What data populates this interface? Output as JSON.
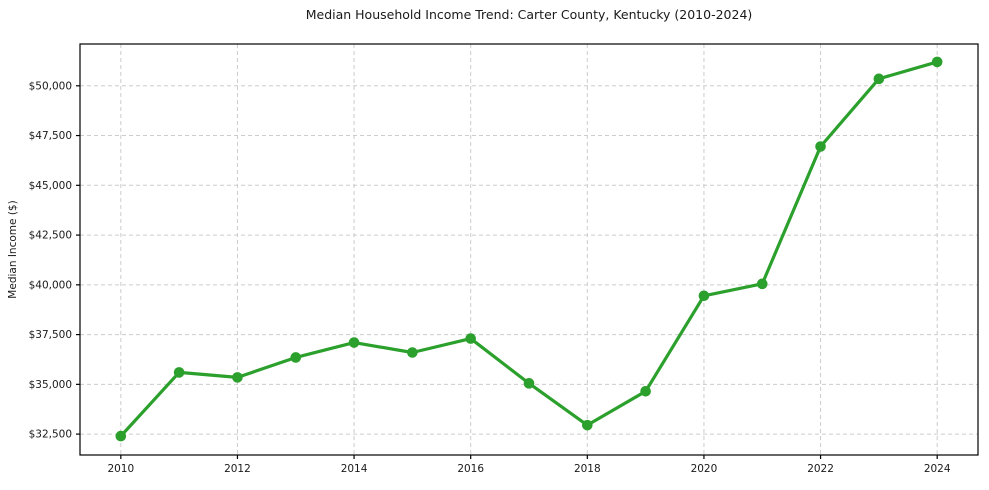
{
  "chart_data": {
    "type": "line",
    "title": "Median Household Income Trend: Carter County, Kentucky (2010-2024)",
    "xlabel": "",
    "ylabel": "Median Income ($)",
    "x": [
      2010,
      2011,
      2012,
      2013,
      2014,
      2015,
      2016,
      2017,
      2018,
      2019,
      2020,
      2021,
      2022,
      2023,
      2024
    ],
    "values": [
      32400,
      35600,
      35350,
      36350,
      37100,
      36600,
      37300,
      35050,
      32950,
      34650,
      39450,
      40050,
      46950,
      50350,
      51200
    ],
    "series_name": "Median household income",
    "xticks": [
      2010,
      2012,
      2014,
      2016,
      2018,
      2020,
      2022,
      2024
    ],
    "xtick_labels": [
      "2010",
      "2012",
      "2014",
      "2016",
      "2018",
      "2020",
      "2022",
      "2024"
    ],
    "yticks": [
      32500,
      35000,
      37500,
      40000,
      42500,
      45000,
      47500,
      50000
    ],
    "ytick_labels": [
      "$32,500",
      "$35,000",
      "$37,500",
      "$40,000",
      "$42,500",
      "$45,000",
      "$47,500",
      "$50,000"
    ],
    "xlim": [
      2009.3,
      2024.7
    ],
    "ylim": [
      31450,
      52100
    ],
    "grid": true,
    "grid_style": "dashed",
    "legend": false,
    "colors": {
      "line": "#2ca02c",
      "marker": "#2ca02c",
      "grid": "#cccccc",
      "spine": "#000000",
      "text": "#1a1a1a",
      "background": "#ffffff"
    }
  }
}
